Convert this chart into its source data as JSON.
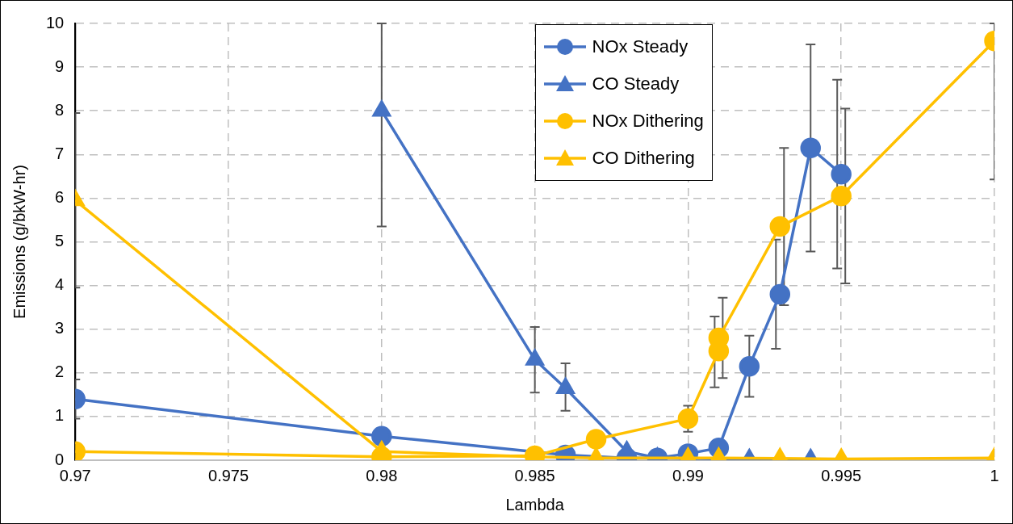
{
  "chart_data": {
    "type": "line",
    "xlabel": "Lambda",
    "ylabel": "Emissions (g/bkW-hr)",
    "xlim": [
      0.97,
      1
    ],
    "xticks": [
      0.97,
      0.975,
      0.98,
      0.985,
      0.99,
      0.995,
      1
    ],
    "ylim": [
      0,
      10
    ],
    "yticks": [
      0,
      1,
      2,
      3,
      4,
      5,
      6,
      7,
      8,
      9,
      10
    ],
    "grid": true,
    "legend": "top",
    "line_style": "solid",
    "series": [
      {
        "name": "NOx Steady",
        "color": "#4472c4",
        "marker": "circle",
        "x": [
          0.97,
          0.98,
          0.986,
          0.988,
          0.989,
          0.99,
          0.991,
          0.992,
          0.993,
          0.994,
          0.995
        ],
        "values": [
          1.4,
          0.55,
          0.12,
          0.05,
          0.05,
          0.15,
          0.28,
          2.15,
          3.8,
          7.15,
          6.55
        ],
        "errors": [
          0.45,
          null,
          null,
          null,
          null,
          null,
          null,
          0.7,
          1.25,
          2.37,
          2.16
        ]
      },
      {
        "name": "CO Steady",
        "color": "#4472c4",
        "marker": "triangle",
        "x": [
          0.98,
          0.985,
          0.986,
          0.988,
          0.989,
          0.992,
          0.994
        ],
        "values": [
          8,
          2.3,
          1.65,
          0.2,
          0.05,
          0.02,
          0.02
        ],
        "errors": [
          [
            5.35,
            10
          ],
          0.75,
          [
            1.13,
            2.22
          ],
          null,
          null,
          null,
          null
        ]
      },
      {
        "name": "NOx Dithering",
        "color": "#ffc000",
        "marker": "circle",
        "x": [
          0.97,
          0.98,
          0.985,
          0.987,
          0.99,
          0.991,
          0.991,
          0.993,
          0.995,
          1
        ],
        "values": [
          0.2,
          0.08,
          0.1,
          0.48,
          0.95,
          2.5,
          2.8,
          5.35,
          6.05,
          9.6
        ],
        "errors": [
          null,
          null,
          null,
          null,
          0.3,
          [
            1.67,
            3.29
          ],
          0.92,
          1.8,
          2,
          [
            6.43,
            10
          ]
        ]
      },
      {
        "name": "CO Dithering",
        "color": "#ffc000",
        "marker": "triangle",
        "x": [
          0.97,
          0.98,
          0.985,
          0.987,
          0.99,
          0.991,
          0.993,
          0.995,
          1
        ],
        "values": [
          5.95,
          0.2,
          0.08,
          0.05,
          0.05,
          0.05,
          0.04,
          0.03,
          0.05
        ],
        "errors": [
          2,
          null,
          null,
          null,
          null,
          null,
          null,
          null,
          null
        ]
      }
    ]
  }
}
